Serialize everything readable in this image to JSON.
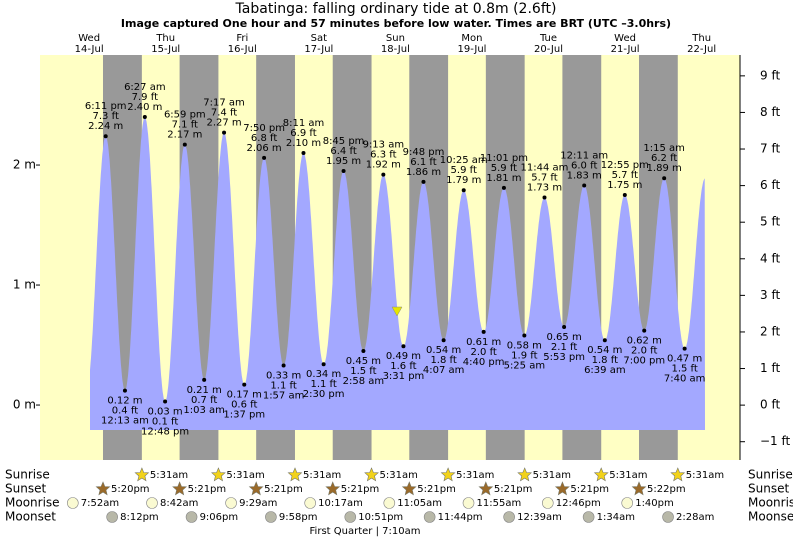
{
  "chart_data": {
    "type": "tide",
    "title": "Tabatinga: falling ordinary tide at 0.8m (2.6ft)",
    "subtitle": "Image captured One hour and 57 minutes before low water. Times are BRT (UTC –3.0hrs)",
    "days": [
      {
        "weekday": "Wed",
        "date": "14-Jul"
      },
      {
        "weekday": "Thu",
        "date": "15-Jul"
      },
      {
        "weekday": "Fri",
        "date": "16-Jul"
      },
      {
        "weekday": "Sat",
        "date": "17-Jul"
      },
      {
        "weekday": "Sun",
        "date": "18-Jul"
      },
      {
        "weekday": "Mon",
        "date": "19-Jul"
      },
      {
        "weekday": "Tue",
        "date": "20-Jul"
      },
      {
        "weekday": "Wed",
        "date": "21-Jul"
      },
      {
        "weekday": "Thu",
        "date": "22-Jul"
      }
    ],
    "times": [
      "6:11 pm",
      "12:13 am",
      "6:27 am",
      "12:48 pm",
      "6:59 pm",
      "1:03 am",
      "7:17 am",
      "1:37 pm",
      "7:50 pm",
      "1:57 am",
      "8:11 am",
      "2:30 pm",
      "8:45 pm",
      "2:58 am",
      "9:13 am",
      "3:31 pm",
      "9:48 pm",
      "4:07 am",
      "10:25 am",
      "4:40 pm",
      "11:01 pm",
      "5:25 am",
      "11:44 am",
      "5:53 pm",
      "12:11 am",
      "6:39 am",
      "12:55 pm",
      "7:00 pm",
      "1:15 am",
      "7:40 am"
    ],
    "values": [
      2.24,
      0.12,
      2.4,
      0.03,
      2.17,
      0.21,
      2.27,
      0.17,
      2.06,
      0.33,
      2.1,
      0.34,
      1.95,
      0.45,
      1.92,
      0.49,
      1.86,
      0.54,
      1.79,
      0.61,
      1.81,
      0.58,
      1.73,
      0.65,
      1.83,
      0.54,
      1.75,
      0.62,
      1.89,
      0.47
    ],
    "value_labels": [
      "2.24 m",
      "0.12 m",
      "2.40 m",
      "0.03 m",
      "2.17 m",
      "0.21 m",
      "2.27 m",
      "0.17 m",
      "2.06 m",
      "0.33 m",
      "2.10 m",
      "0.34 m",
      "1.95 m",
      "0.45 m",
      "1.92 m",
      "0.49 m",
      "1.86 m",
      "0.54 m",
      "1.79 m",
      "0.61 m",
      "1.81 m",
      "0.58 m",
      "1.73 m",
      "0.65 m",
      "1.83 m",
      "0.54 m",
      "1.75 m",
      "0.62 m",
      "1.89 m",
      "0.47 m"
    ],
    "y2_labels": [
      "7.3 ft",
      "0.4 ft",
      "7.9 ft",
      "0.1 ft",
      "7.1 ft",
      "0.7 ft",
      "7.4 ft",
      "0.6 ft",
      "6.8 ft",
      "1.1 ft",
      "6.9 ft",
      "1.1 ft",
      "6.4 ft",
      "1.5 ft",
      "6.3 ft",
      "1.6 ft",
      "6.1 ft",
      "1.8 ft",
      "5.9 ft",
      "2.0 ft",
      "5.9 ft",
      "1.9 ft",
      "5.7 ft",
      "2.1 ft",
      "6.0 ft",
      "1.8 ft",
      "5.7 ft",
      "2.0 ft",
      "6.2 ft",
      "1.5 ft"
    ],
    "ylim": [
      -0.458,
      2.917
    ],
    "yticks": [
      {
        "value": 0,
        "label": "0 m"
      },
      {
        "value": 1,
        "label": "1 m"
      },
      {
        "value": 2,
        "label": "2 m"
      }
    ],
    "y2lim": [
      -1.5,
      9.57
    ],
    "y2ticks": [
      {
        "value": -1,
        "label": "−1 ft"
      },
      {
        "value": 0,
        "label": "0 ft"
      },
      {
        "value": 1,
        "label": "1 ft"
      },
      {
        "value": 2,
        "label": "2 ft"
      },
      {
        "value": 3,
        "label": "3 ft"
      },
      {
        "value": 4,
        "label": "4 ft"
      },
      {
        "value": 5,
        "label": "5 ft"
      },
      {
        "value": 6,
        "label": "6 ft"
      },
      {
        "value": 7,
        "label": "7 ft"
      },
      {
        "value": 8,
        "label": "8 ft"
      },
      {
        "value": 9,
        "label": "9 ft"
      }
    ],
    "colors": {
      "day": "#ffffc4",
      "night": "#999999",
      "tide": "#a3a8ff",
      "day_label": "#e00000"
    },
    "events": [
      {
        "name": "Sunrise",
        "color": "#f2d21a",
        "times": [
          "5:31am",
          "5:31am",
          "5:31am",
          "5:31am",
          "5:31am",
          "5:31am",
          "5:31am",
          "5:31am"
        ]
      },
      {
        "name": "Sunset",
        "color": "#9a6a2a",
        "times": [
          "5:20pm",
          "5:21pm",
          "5:21pm",
          "5:21pm",
          "5:21pm",
          "5:21pm",
          "5:21pm",
          "5:22pm"
        ]
      },
      {
        "name": "Moonrise",
        "color": "#fafad2",
        "times": [
          "7:52am",
          "8:42am",
          "9:29am",
          "10:17am",
          "11:05am",
          "11:55am",
          "12:46pm",
          "1:40pm"
        ]
      },
      {
        "name": "Moonset",
        "color": "#b8b8a8",
        "times": [
          "8:12pm",
          "9:06pm",
          "9:58pm",
          "10:51pm",
          "11:44pm",
          "12:39am",
          "1:34am",
          "2:28am"
        ]
      }
    ],
    "moon_phase": "First Quarter | 7:10am"
  }
}
